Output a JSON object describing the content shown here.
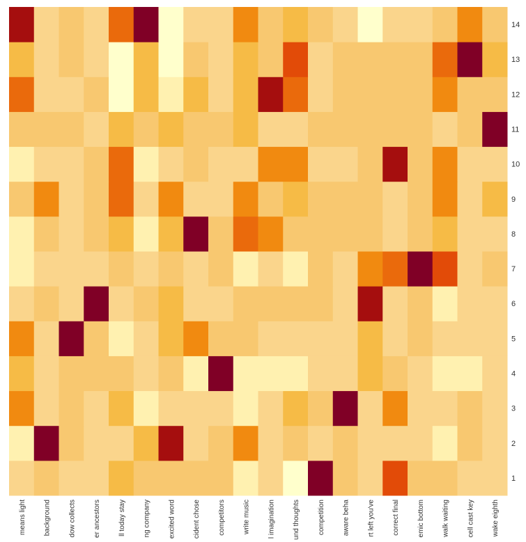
{
  "chart_data": {
    "type": "heatmap",
    "x_categories": [
      "means light",
      "background",
      "dow collects",
      "er ancestors",
      "ll today stay",
      "ng company",
      "excited word",
      "cident chose",
      "competitors",
      "write music",
      "l imagination",
      "und thoughts",
      "competition",
      "aware beha",
      "rt left you've",
      "correct final",
      "emic bottom",
      "walk waiting",
      "cell cast key",
      "wake eighth"
    ],
    "y_categories": [
      "1",
      "2",
      "3",
      "4",
      "5",
      "6",
      "7",
      "8",
      "9",
      "10",
      "11",
      "12",
      "13",
      "14"
    ],
    "colorscale": "YlOrRd",
    "zlim": [
      0,
      9
    ],
    "z": [
      [
        2,
        3,
        2,
        2,
        4,
        3,
        3,
        3,
        3,
        1,
        2,
        0,
        9,
        3,
        2,
        7,
        3,
        3,
        2,
        2
      ],
      [
        1,
        9,
        3,
        2,
        2,
        4,
        8,
        2,
        3,
        5,
        2,
        3,
        2,
        3,
        2,
        2,
        2,
        1,
        3,
        2
      ],
      [
        5,
        2,
        3,
        2,
        4,
        1,
        2,
        2,
        2,
        1,
        2,
        4,
        3,
        9,
        2,
        5,
        2,
        2,
        3,
        2
      ],
      [
        4,
        2,
        3,
        3,
        3,
        2,
        3,
        1,
        9,
        1,
        1,
        1,
        2,
        2,
        4,
        3,
        2,
        1,
        1,
        2
      ],
      [
        5,
        2,
        9,
        3,
        1,
        2,
        4,
        5,
        3,
        3,
        2,
        2,
        2,
        2,
        4,
        2,
        3,
        2,
        2,
        2
      ],
      [
        2,
        3,
        2,
        9,
        2,
        3,
        4,
        2,
        2,
        3,
        3,
        3,
        3,
        2,
        8,
        2,
        3,
        1,
        2,
        2
      ],
      [
        1,
        2,
        2,
        2,
        3,
        2,
        3,
        2,
        3,
        1,
        2,
        1,
        3,
        2,
        5,
        6,
        9,
        7,
        2,
        3
      ],
      [
        1,
        3,
        2,
        3,
        4,
        1,
        4,
        9,
        3,
        6,
        5,
        3,
        3,
        3,
        3,
        2,
        3,
        4,
        2,
        2
      ],
      [
        3,
        5,
        2,
        3,
        6,
        2,
        5,
        2,
        2,
        5,
        3,
        4,
        3,
        3,
        3,
        2,
        3,
        5,
        2,
        4
      ],
      [
        1,
        2,
        2,
        3,
        6,
        1,
        2,
        3,
        2,
        2,
        5,
        5,
        2,
        2,
        3,
        8,
        3,
        5,
        2,
        2
      ],
      [
        3,
        3,
        3,
        2,
        4,
        3,
        4,
        3,
        3,
        4,
        2,
        2,
        3,
        3,
        3,
        3,
        3,
        2,
        3,
        9
      ],
      [
        6,
        2,
        2,
        3,
        0,
        4,
        1,
        4,
        2,
        4,
        8,
        6,
        2,
        3,
        3,
        3,
        3,
        5,
        3,
        3
      ],
      [
        4,
        2,
        3,
        2,
        0,
        4,
        0,
        3,
        2,
        4,
        3,
        7,
        2,
        3,
        3,
        3,
        3,
        6,
        9,
        4
      ],
      [
        8,
        2,
        3,
        2,
        6,
        9,
        0,
        2,
        2,
        5,
        3,
        4,
        3,
        2,
        0,
        2,
        2,
        3,
        5,
        3
      ]
    ]
  }
}
